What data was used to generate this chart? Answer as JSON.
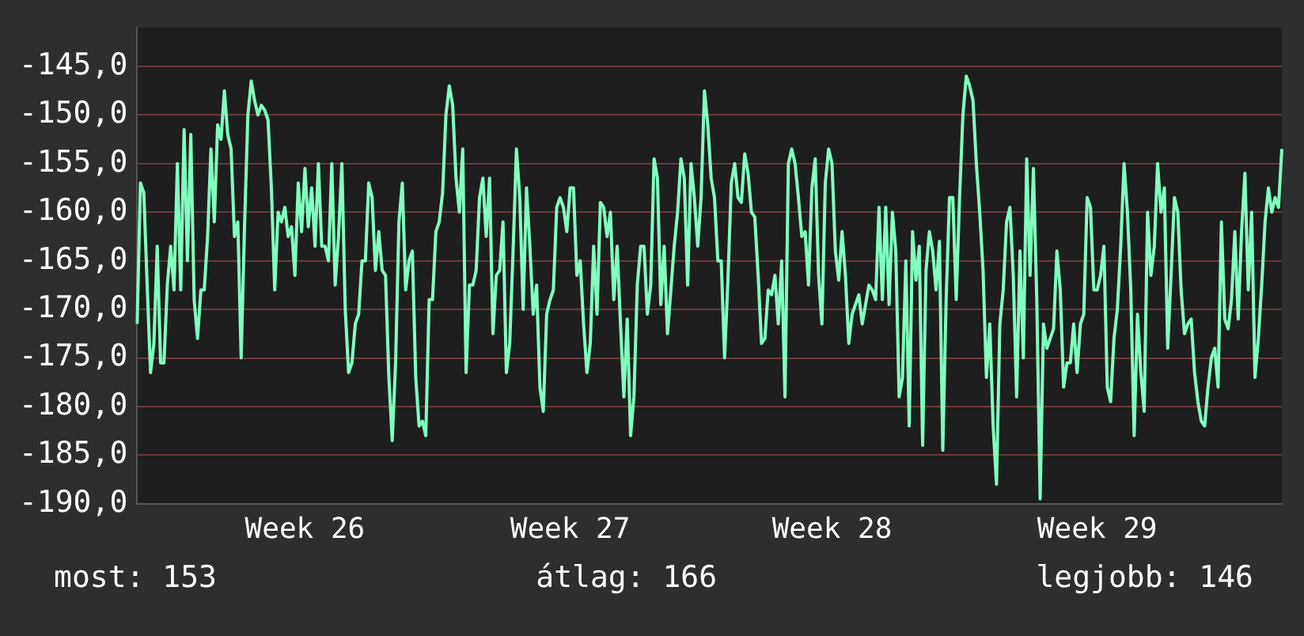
{
  "chart_data": {
    "type": "line",
    "categories": [
      null,
      null,
      null,
      null,
      null,
      null,
      null,
      null,
      null,
      null,
      null,
      null,
      null,
      null,
      null,
      null,
      null,
      null,
      null,
      null,
      null,
      null,
      null,
      null,
      null,
      null,
      null,
      null,
      null,
      null,
      null,
      null,
      null,
      null,
      null,
      null,
      null,
      null,
      null,
      null,
      null,
      null,
      null,
      null,
      null,
      null,
      null,
      null,
      null,
      null,
      "Week 26",
      null,
      null,
      null,
      null,
      null,
      null,
      null,
      null,
      null,
      null,
      null,
      null,
      null,
      null,
      null,
      null,
      null,
      null,
      null,
      null,
      null,
      null,
      null,
      null,
      null,
      null,
      null,
      null,
      null,
      null,
      null,
      null,
      null,
      null,
      null,
      null,
      null,
      null,
      null,
      null,
      null,
      null,
      null,
      null,
      null,
      null,
      null,
      null,
      null,
      null,
      null,
      null,
      null,
      null,
      null,
      null,
      null,
      null,
      null,
      null,
      null,
      null,
      null,
      null,
      null,
      null,
      null,
      null,
      null,
      null,
      null,
      null,
      null,
      null,
      null,
      null,
      null,
      null,
      "Week 27",
      null,
      null,
      null,
      null,
      null,
      null,
      null,
      null,
      null,
      null,
      null,
      null,
      null,
      null,
      null,
      null,
      null,
      null,
      null,
      null,
      null,
      null,
      null,
      null,
      null,
      null,
      null,
      null,
      null,
      null,
      null,
      null,
      null,
      null,
      null,
      null,
      null,
      null,
      null,
      null,
      null,
      null,
      null,
      null,
      null,
      null,
      null,
      null,
      null,
      null,
      null,
      null,
      null,
      null,
      null,
      null,
      null,
      null,
      null,
      null,
      null,
      null,
      null,
      null,
      null,
      null,
      null,
      null,
      null,
      null,
      null,
      null,
      null,
      null,
      null,
      null,
      null,
      "Week 28",
      null,
      null,
      null,
      null,
      null,
      null,
      null,
      null,
      null,
      null,
      null,
      null,
      null,
      null,
      null,
      null,
      null,
      null,
      null,
      null,
      null,
      null,
      null,
      null,
      null,
      null,
      null,
      null,
      null,
      null,
      null,
      null,
      null,
      null,
      null,
      null,
      null,
      null,
      null,
      null,
      null,
      null,
      null,
      null,
      null,
      null,
      null,
      null,
      null,
      null,
      null,
      null,
      null,
      null,
      null,
      null,
      null,
      null,
      null,
      null,
      null,
      null,
      null,
      null,
      null,
      null,
      null,
      null,
      null,
      null,
      null,
      null,
      null,
      null,
      null,
      null,
      null,
      null,
      "Week 29",
      null,
      null,
      null,
      null,
      null,
      null,
      null,
      null,
      null,
      null,
      null,
      null,
      null,
      null,
      null,
      null,
      null,
      null,
      null,
      null,
      null,
      null,
      null,
      null,
      null,
      null,
      null,
      null,
      null,
      null,
      null,
      null,
      null,
      null,
      null,
      null,
      null,
      null,
      null,
      null,
      null,
      null,
      null,
      null,
      null,
      null,
      null,
      null,
      null,
      null,
      null,
      null,
      null,
      null,
      null
    ],
    "series": [
      {
        "color": "#80ffc0",
        "values": [
          -171.5,
          -157,
          -158,
          -167.5,
          -176.5,
          -173.5,
          -163.5,
          -175.5,
          -175.5,
          -167.5,
          -163.5,
          -168,
          -155,
          -168,
          -151.5,
          -165,
          -152,
          -169,
          -173,
          -168,
          -168,
          -162.5,
          -153.5,
          -161,
          -151,
          -152.5,
          -147.5,
          -152,
          -153.5,
          -162.5,
          -161,
          -175,
          -161.5,
          -150,
          -146.5,
          -148.5,
          -150,
          -149,
          -149.5,
          -150.5,
          -157.5,
          -168,
          -160,
          -161,
          -159.5,
          -162.5,
          -161.5,
          -166.5,
          -157,
          -162,
          -155.5,
          -161.5,
          -157.5,
          -163.5,
          -155,
          -163.5,
          -163.5,
          -165,
          -155,
          -167.5,
          -162.5,
          -155,
          -170,
          -176.5,
          -175.5,
          -171.5,
          -170.5,
          -165,
          -165,
          -157,
          -158.5,
          -166,
          -162,
          -166,
          -166.5,
          -177,
          -183.5,
          -175.5,
          -161,
          -157,
          -168,
          -165,
          -164,
          -177,
          -182,
          -181.5,
          -183,
          -169,
          -169,
          -162,
          -161,
          -158,
          -150,
          -147,
          -149,
          -156.5,
          -160,
          -153.5,
          -176.5,
          -167.5,
          -167.5,
          -166,
          -158.5,
          -156.5,
          -162.5,
          -156.5,
          -172.5,
          -166.5,
          -166,
          -161,
          -176.5,
          -173.5,
          -164,
          -153.5,
          -158.5,
          -170,
          -157.5,
          -163.5,
          -170.5,
          -167.5,
          -178,
          -180.5,
          -170.5,
          -169,
          -168,
          -159.5,
          -158.5,
          -159.5,
          -162,
          -157.5,
          -157.5,
          -166.5,
          -165,
          -171.5,
          -176.5,
          -173.5,
          -163.5,
          -170.5,
          -159,
          -159.5,
          -162.5,
          -160,
          -169,
          -163.5,
          -171.5,
          -179,
          -171,
          -183,
          -179,
          -167.5,
          -163.5,
          -163.5,
          -170.5,
          -167.5,
          -154.5,
          -156.5,
          -169.5,
          -163.5,
          -172.5,
          -168,
          -163.5,
          -160,
          -154.5,
          -156.5,
          -167.5,
          -155,
          -158.5,
          -163.5,
          -158.5,
          -147.5,
          -151,
          -156.5,
          -158.5,
          -165,
          -165,
          -175,
          -167,
          -157,
          -155,
          -158.5,
          -159,
          -154,
          -156,
          -160,
          -160.5,
          -166.5,
          -173.5,
          -173,
          -168,
          -168.5,
          -166.5,
          -171.5,
          -165,
          -179,
          -155,
          -153.5,
          -155,
          -158.5,
          -162.5,
          -162,
          -167.5,
          -157.5,
          -154.5,
          -166.5,
          -171.5,
          -157,
          -153.5,
          -155,
          -164,
          -167,
          -162,
          -166.5,
          -173.5,
          -170.5,
          -169.5,
          -168.5,
          -171.5,
          -169.5,
          -167.5,
          -168,
          -169,
          -159.5,
          -169,
          -159.5,
          -169.5,
          -160,
          -164,
          -179,
          -177,
          -165,
          -182,
          -162,
          -167,
          -163.5,
          -184,
          -166,
          -162,
          -164,
          -168,
          -163,
          -184.5,
          -169,
          -158.5,
          -158.5,
          -169,
          -158.5,
          -150,
          -146,
          -147,
          -148.5,
          -155,
          -160,
          -166,
          -177,
          -171.5,
          -182,
          -188,
          -171.5,
          -168,
          -161,
          -159.5,
          -166.5,
          -179,
          -164,
          -175,
          -154.5,
          -166.5,
          -155.5,
          -169,
          -189.5,
          -171.5,
          -174,
          -173,
          -172,
          -164,
          -168,
          -178,
          -175.5,
          -175.5,
          -171.5,
          -176.5,
          -171.5,
          -170.5,
          -158.5,
          -159.5,
          -168,
          -168,
          -166.5,
          -163.5,
          -178,
          -179.5,
          -173,
          -170,
          -163.5,
          -155,
          -160,
          -168,
          -183,
          -170.5,
          -176.5,
          -180.5,
          -160,
          -166.5,
          -163.5,
          -155,
          -160,
          -157.5,
          -174,
          -166.5,
          -158.5,
          -160,
          -168,
          -172.5,
          -171.5,
          -171,
          -176.5,
          -179.5,
          -181.5,
          -182,
          -178,
          -175,
          -174,
          -178,
          -161,
          -171,
          -172,
          -169,
          -162,
          -171,
          -162,
          -156,
          -168,
          -160,
          -177,
          -173,
          -167.5,
          -161,
          -157.5,
          -160,
          -158.5,
          -159.5,
          -153.5
        ]
      }
    ],
    "ylim": [
      -190,
      -141
    ],
    "yticks": [
      {
        "value": -190,
        "label": "-190,0"
      },
      {
        "value": -185,
        "label": "-185,0"
      },
      {
        "value": -180,
        "label": "-180,0"
      },
      {
        "value": -175,
        "label": "-175,0"
      },
      {
        "value": -170,
        "label": "-170,0"
      },
      {
        "value": -165,
        "label": "-165,0"
      },
      {
        "value": -160,
        "label": "-160,0"
      },
      {
        "value": -155,
        "label": "-155,0"
      },
      {
        "value": -150,
        "label": "-150,0"
      },
      {
        "value": -145,
        "label": "-145,0"
      }
    ],
    "grid": true,
    "legend": false,
    "annotations": [
      "most: 153",
      "átlag: 166",
      "legjobb: 146"
    ]
  }
}
